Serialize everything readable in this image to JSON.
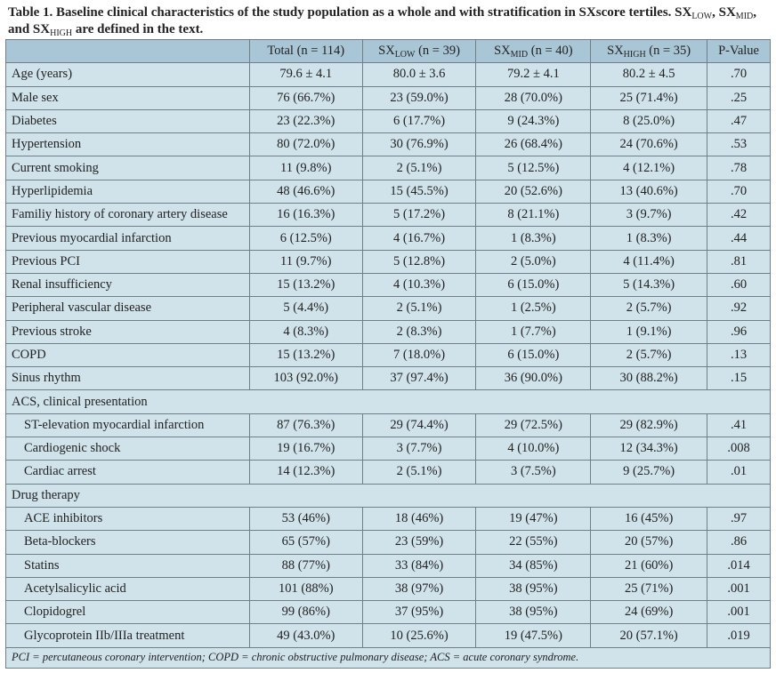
{
  "title": {
    "parts": [
      {
        "t": "Table 1. Baseline clinical characteristics of the study population as a whole and with stratification in SXscore tertiles. SX"
      },
      {
        "sub": "LOW"
      },
      {
        "t": ", SX"
      },
      {
        "sub": "MID"
      },
      {
        "t": ", and SX"
      },
      {
        "sub": "HIGH"
      },
      {
        "t": " are defined in the text."
      }
    ]
  },
  "columns": [
    {
      "base": "",
      "sub": "",
      "rest": ""
    },
    {
      "base": "Total (n = 114)",
      "sub": "",
      "rest": ""
    },
    {
      "base": "SX",
      "sub": "LOW",
      "rest": " (n = 39)"
    },
    {
      "base": "SX",
      "sub": "MID",
      "rest": " (n = 40)"
    },
    {
      "base": "SX",
      "sub": "HIGH",
      "rest": " (n = 35)"
    },
    {
      "base": "P-Value",
      "sub": "",
      "rest": ""
    }
  ],
  "rows": [
    {
      "cells": [
        "Age (years)",
        "79.6 ± 4.1",
        "80.0 ± 3.6",
        "79.2 ± 4.1",
        "80.2 ± 4.5",
        ".70"
      ]
    },
    {
      "cells": [
        "Male sex",
        "76 (66.7%)",
        "23 (59.0%)",
        "28 (70.0%)",
        "25 (71.4%)",
        ".25"
      ]
    },
    {
      "cells": [
        "Diabetes",
        "23 (22.3%)",
        "6 (17.7%)",
        "9 (24.3%)",
        "8 (25.0%)",
        ".47"
      ]
    },
    {
      "cells": [
        "Hypertension",
        "80 (72.0%)",
        "30 (76.9%)",
        "26 (68.4%)",
        "24 (70.6%)",
        ".53"
      ]
    },
    {
      "cells": [
        "Current smoking",
        "11 (9.8%)",
        "2 (5.1%)",
        "5 (12.5%)",
        "4 (12.1%)",
        ".78"
      ]
    },
    {
      "cells": [
        "Hyperlipidemia",
        "48 (46.6%)",
        "15 (45.5%)",
        "20 (52.6%)",
        "13 (40.6%)",
        ".70"
      ]
    },
    {
      "cells": [
        "Familiy history of coronary artery disease",
        "16 (16.3%)",
        "5 (17.2%)",
        "8 (21.1%)",
        "3 (9.7%)",
        ".42"
      ]
    },
    {
      "cells": [
        "Previous myocardial infarction",
        "6 (12.5%)",
        "4 (16.7%)",
        "1 (8.3%)",
        "1 (8.3%)",
        ".44"
      ]
    },
    {
      "cells": [
        "Previous PCI",
        "11 (9.7%)",
        "5 (12.8%)",
        "2 (5.0%)",
        "4 (11.4%)",
        ".81"
      ]
    },
    {
      "cells": [
        "Renal insufficiency",
        "15 (13.2%)",
        "4 (10.3%)",
        "6 (15.0%)",
        "5 (14.3%)",
        ".60"
      ]
    },
    {
      "cells": [
        "Peripheral vascular disease",
        "5 (4.4%)",
        "2 (5.1%)",
        "1 (2.5%)",
        "2 (5.7%)",
        ".92"
      ]
    },
    {
      "cells": [
        "Previous stroke",
        "4 (8.3%)",
        "2 (8.3%)",
        "1 (7.7%)",
        "1 (9.1%)",
        ".96"
      ]
    },
    {
      "cells": [
        "COPD",
        "15 (13.2%)",
        "7 (18.0%)",
        "6 (15.0%)",
        "2 (5.7%)",
        ".13"
      ]
    },
    {
      "cells": [
        "Sinus rhythm",
        "103 (92.0%)",
        "37 (97.4%)",
        "36 (90.0%)",
        "30 (88.2%)",
        ".15"
      ]
    },
    {
      "section": "ACS, clinical presentation"
    },
    {
      "indent": true,
      "cells": [
        "ST-elevation myocardial infarction",
        "87 (76.3%)",
        "29 (74.4%)",
        "29 (72.5%)",
        "29 (82.9%)",
        ".41"
      ]
    },
    {
      "indent": true,
      "cells": [
        "Cardiogenic shock",
        "19 (16.7%)",
        "3 (7.7%)",
        "4 (10.0%)",
        "12 (34.3%)",
        ".008"
      ]
    },
    {
      "indent": true,
      "cells": [
        "Cardiac arrest",
        "14 (12.3%)",
        "2 (5.1%)",
        "3 (7.5%)",
        "9 (25.7%)",
        ".01"
      ]
    },
    {
      "section": "Drug therapy"
    },
    {
      "indent": true,
      "cells": [
        "ACE inhibitors",
        "53 (46%)",
        "18 (46%)",
        "19 (47%)",
        "16 (45%)",
        ".97"
      ]
    },
    {
      "indent": true,
      "cells": [
        "Beta-blockers",
        "65 (57%)",
        "23 (59%)",
        "22 (55%)",
        "20 (57%)",
        ".86"
      ]
    },
    {
      "indent": true,
      "cells": [
        "Statins",
        "88 (77%)",
        "33 (84%)",
        "34 (85%)",
        "21 (60%)",
        ".014"
      ]
    },
    {
      "indent": true,
      "cells": [
        "Acetylsalicylic acid",
        "101 (88%)",
        "38 (97%)",
        "38 (95%)",
        "25 (71%)",
        ".001"
      ]
    },
    {
      "indent": true,
      "cells": [
        "Clopidogrel",
        "99 (86%)",
        "37 (95%)",
        "38 (95%)",
        "24 (69%)",
        ".001"
      ]
    },
    {
      "indent": true,
      "cells": [
        "Glycoprotein IIb/IIIa treatment",
        "49 (43.0%)",
        "10 (25.6%)",
        "19 (47.5%)",
        "20 (57.1%)",
        ".019"
      ]
    }
  ],
  "footnote": "PCI = percutaneous coronary intervention; COPD = chronic obstructive pulmonary disease; ACS = acute coronary syndrome.",
  "colors": {
    "header_bg": "#a9c6d6",
    "row_bg": "#d0e2ea",
    "border": "#6e7f88"
  }
}
